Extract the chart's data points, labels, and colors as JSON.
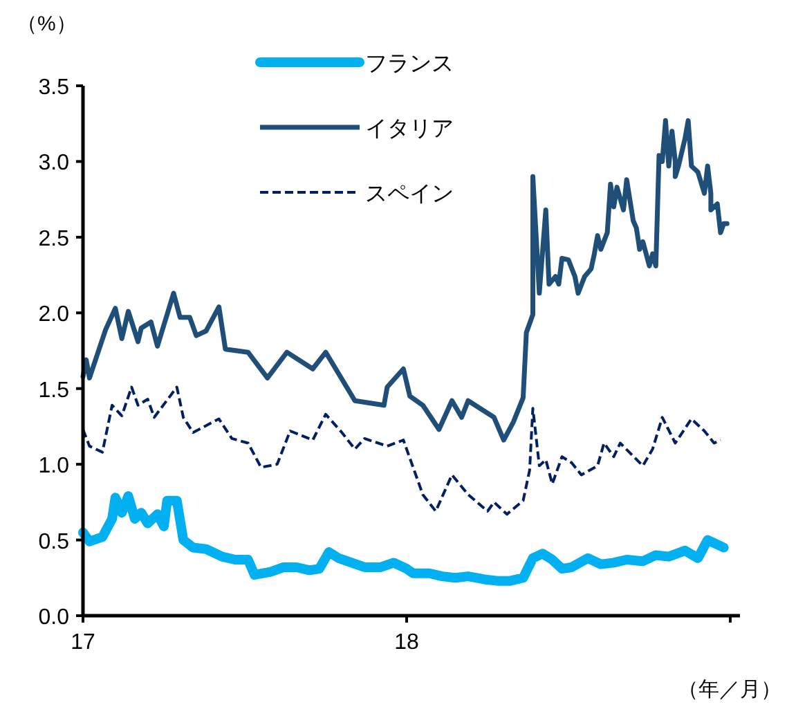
{
  "chart_data": {
    "type": "line",
    "ylabel": "（%）",
    "xlabel": "（年／月）",
    "xlim": [
      17,
      19.03
    ],
    "ylim": [
      0,
      3.5
    ],
    "xticks": [
      {
        "value": 17,
        "label": "17"
      },
      {
        "value": 18,
        "label": "18"
      },
      {
        "value": 19,
        "label": null
      }
    ],
    "yticks": [
      {
        "value": 0,
        "label": "0.0"
      },
      {
        "value": 0.5,
        "label": "0.5"
      },
      {
        "value": 1,
        "label": "1.0"
      },
      {
        "value": 1.5,
        "label": "1.5"
      },
      {
        "value": 2,
        "label": "2.0"
      },
      {
        "value": 2.5,
        "label": "2.5"
      },
      {
        "value": 3,
        "label": "3.0"
      },
      {
        "value": 3.5,
        "label": "3.5"
      }
    ],
    "grid": false,
    "legend": "top",
    "series": [
      {
        "name": "フランス",
        "color": "#00b0f0",
        "line_style": "solid",
        "x": [
          17.0,
          17.02,
          17.06,
          17.09,
          17.1,
          17.12,
          17.14,
          17.16,
          17.18,
          17.2,
          17.23,
          17.25,
          17.26,
          17.29,
          17.31,
          17.34,
          17.38,
          17.43,
          17.47,
          17.51,
          17.53,
          17.58,
          17.62,
          17.66,
          17.7,
          17.73,
          17.76,
          17.79,
          17.83,
          17.87,
          17.92,
          17.96,
          18.0,
          18.02,
          18.07,
          18.11,
          18.15,
          18.19,
          18.24,
          18.28,
          18.32,
          18.36,
          18.39,
          18.42,
          18.45,
          18.48,
          18.51,
          18.56,
          18.6,
          18.64,
          18.68,
          18.73,
          18.77,
          18.81,
          18.86,
          18.9,
          18.93,
          18.96,
          18.98
        ],
        "values": [
          0.55,
          0.49,
          0.52,
          0.64,
          0.78,
          0.68,
          0.79,
          0.64,
          0.68,
          0.61,
          0.67,
          0.59,
          0.76,
          0.76,
          0.5,
          0.45,
          0.44,
          0.39,
          0.37,
          0.37,
          0.27,
          0.29,
          0.32,
          0.32,
          0.3,
          0.31,
          0.42,
          0.38,
          0.35,
          0.32,
          0.32,
          0.35,
          0.31,
          0.28,
          0.28,
          0.26,
          0.25,
          0.26,
          0.24,
          0.23,
          0.23,
          0.25,
          0.38,
          0.41,
          0.37,
          0.31,
          0.32,
          0.38,
          0.34,
          0.35,
          0.37,
          0.36,
          0.4,
          0.39,
          0.43,
          0.38,
          0.5,
          0.47,
          0.45
        ]
      },
      {
        "name": "イタリア",
        "color": "#1f4e79",
        "line_style": "solid",
        "x": [
          17.0,
          17.01,
          17.02,
          17.07,
          17.1,
          17.12,
          17.14,
          17.17,
          17.18,
          17.21,
          17.23,
          17.28,
          17.3,
          17.33,
          17.35,
          17.38,
          17.42,
          17.44,
          17.51,
          17.57,
          17.63,
          17.71,
          17.75,
          17.84,
          17.93,
          17.94,
          17.99,
          18.01,
          18.05,
          18.1,
          18.14,
          18.17,
          18.19,
          18.27,
          18.3,
          18.33,
          18.36,
          18.37,
          18.39,
          18.39,
          18.41,
          18.43,
          18.44,
          18.46,
          18.47,
          18.48,
          18.5,
          18.52,
          18.53,
          18.55,
          18.57,
          18.58,
          18.59,
          18.6,
          18.62,
          18.63,
          18.64,
          18.65,
          18.67,
          18.68,
          18.7,
          18.71,
          18.72,
          18.73,
          18.75,
          18.76,
          18.77,
          18.78,
          18.79,
          18.8,
          18.81,
          18.82,
          18.83,
          18.83,
          18.84,
          18.86,
          18.87,
          18.88,
          18.9,
          18.92,
          18.93,
          18.94,
          18.94,
          18.96,
          18.97,
          18.98,
          18.99
        ],
        "values": [
          1.58,
          1.69,
          1.57,
          1.89,
          2.03,
          1.83,
          2.01,
          1.81,
          1.9,
          1.94,
          1.78,
          2.13,
          1.97,
          1.97,
          1.85,
          1.88,
          2.04,
          1.76,
          1.74,
          1.57,
          1.74,
          1.63,
          1.74,
          1.42,
          1.39,
          1.51,
          1.63,
          1.45,
          1.39,
          1.23,
          1.42,
          1.31,
          1.42,
          1.31,
          1.16,
          1.28,
          1.44,
          1.87,
          1.99,
          2.9,
          2.13,
          2.68,
          2.19,
          2.24,
          2.19,
          2.36,
          2.35,
          2.24,
          2.13,
          2.24,
          2.29,
          2.39,
          2.51,
          2.42,
          2.53,
          2.85,
          2.7,
          2.83,
          2.68,
          2.88,
          2.61,
          2.56,
          2.42,
          2.47,
          2.31,
          2.39,
          2.31,
          3.04,
          3.0,
          3.27,
          2.97,
          3.2,
          3.0,
          2.9,
          2.97,
          3.15,
          3.27,
          2.97,
          2.93,
          2.79,
          2.97,
          2.79,
          2.68,
          2.72,
          2.53,
          2.59,
          2.59
        ]
      },
      {
        "name": "スペイン",
        "color": "#002060",
        "line_style": "dashed",
        "x": [
          17.0,
          17.02,
          17.06,
          17.09,
          17.12,
          17.15,
          17.17,
          17.2,
          17.22,
          17.29,
          17.31,
          17.34,
          17.42,
          17.46,
          17.51,
          17.55,
          17.6,
          17.64,
          17.71,
          17.75,
          17.8,
          17.84,
          17.87,
          17.94,
          17.99,
          18.05,
          18.09,
          18.14,
          18.19,
          18.25,
          18.27,
          18.31,
          18.36,
          18.38,
          18.39,
          18.41,
          18.43,
          18.45,
          18.48,
          18.51,
          18.54,
          18.59,
          18.61,
          18.64,
          18.66,
          18.73,
          18.76,
          18.79,
          18.83,
          18.88,
          18.92,
          18.95,
          18.97
        ],
        "values": [
          1.23,
          1.12,
          1.08,
          1.39,
          1.32,
          1.51,
          1.39,
          1.43,
          1.31,
          1.51,
          1.31,
          1.21,
          1.3,
          1.17,
          1.14,
          0.98,
          1.0,
          1.22,
          1.16,
          1.33,
          1.21,
          1.1,
          1.17,
          1.12,
          1.16,
          0.8,
          0.69,
          0.93,
          0.8,
          0.69,
          0.75,
          0.67,
          0.76,
          0.96,
          1.37,
          0.99,
          1.03,
          0.87,
          1.05,
          1.01,
          0.93,
          0.99,
          1.14,
          1.05,
          1.14,
          0.99,
          1.1,
          1.31,
          1.14,
          1.3,
          1.22,
          1.14,
          1.16
        ]
      }
    ]
  }
}
